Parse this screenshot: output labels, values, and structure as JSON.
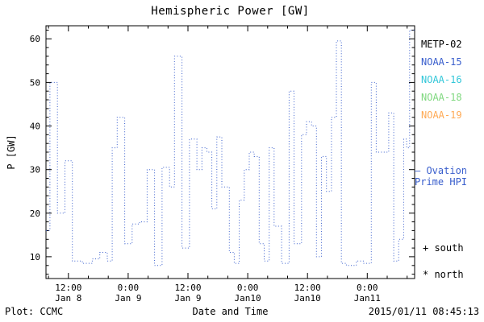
{
  "legend": [
    {
      "label": "METP-02",
      "color": "#000000"
    },
    {
      "label": "NOAA-15",
      "color": "#3a5fcd"
    },
    {
      "label": "NOAA-16",
      "color": "#33c7d9"
    },
    {
      "label": "NOAA-18",
      "color": "#7fd87f"
    },
    {
      "label": "NOAA-19",
      "color": "#ffaa55"
    }
  ],
  "annotations": {
    "ovation_line1": "— Ovation",
    "ovation_line2": "Prime HPI",
    "ovation_color": "#3a5fcd",
    "south": "+ south",
    "north": "* north"
  },
  "footer": {
    "plot_source": "Plot: CCMC",
    "timestamp": "2015/01/11 08:45:13"
  },
  "chart_data": {
    "type": "line",
    "style": "step-post dotted",
    "title": "Hemispheric Power [GW]",
    "xlabel": "Date and Time",
    "ylabel": "P [GW]",
    "ink": "#000000",
    "xlim": [
      7.5,
      81.5
    ],
    "ylim": [
      5,
      63
    ],
    "yticks": [
      10,
      20,
      30,
      40,
      50,
      60
    ],
    "x_minor_step": 4,
    "y_minor_step": 2,
    "xticks": [
      {
        "v": 12,
        "time": "12:00",
        "date": "Jan 8"
      },
      {
        "v": 24,
        "time": "0:00",
        "date": "Jan 9"
      },
      {
        "v": 36,
        "time": "12:00",
        "date": "Jan 9"
      },
      {
        "v": 48,
        "time": "0:00",
        "date": "Jan10"
      },
      {
        "v": 60,
        "time": "12:00",
        "date": "Jan10"
      },
      {
        "v": 72,
        "time": "0:00",
        "date": "Jan11"
      }
    ],
    "x_units": "hours since 2015-01-08 00:00",
    "series": [
      {
        "name": "Ovation Prime HPI",
        "color": "#3a5fcd",
        "x": [
          7.5,
          8.3,
          9.8,
          11.3,
          12.8,
          14.8,
          16.8,
          18.3,
          19.8,
          20.8,
          21.8,
          23.3,
          24.8,
          26.3,
          27.8,
          29.3,
          30.8,
          32.3,
          33.3,
          34.8,
          36.3,
          37.8,
          38.8,
          39.8,
          40.8,
          41.8,
          42.8,
          44.3,
          45.3,
          46.3,
          47.3,
          48.3,
          49.3,
          50.3,
          51.3,
          52.3,
          53.3,
          54.8,
          56.3,
          57.3,
          58.8,
          59.8,
          60.8,
          61.8,
          62.8,
          63.8,
          64.8,
          65.8,
          66.8,
          67.8,
          69.8,
          71.3,
          72.8,
          73.8,
          74.8,
          76.3,
          77.3,
          78.3,
          79.3,
          79.9,
          80.5
        ],
        "y": [
          16,
          50,
          20,
          32,
          9,
          8.5,
          9.5,
          11,
          9,
          35,
          42,
          13,
          17.5,
          18,
          30,
          8,
          30.5,
          26,
          56,
          12,
          37,
          30,
          35,
          34,
          21,
          37.5,
          26,
          11,
          8.5,
          23,
          30,
          34,
          33,
          13,
          9,
          35,
          17,
          8.5,
          48,
          13,
          38,
          41,
          40,
          10,
          33,
          25,
          42,
          59.5,
          8.5,
          8,
          9,
          8.5,
          50,
          34,
          34,
          43,
          9,
          14,
          37,
          35,
          62
        ]
      }
    ]
  }
}
